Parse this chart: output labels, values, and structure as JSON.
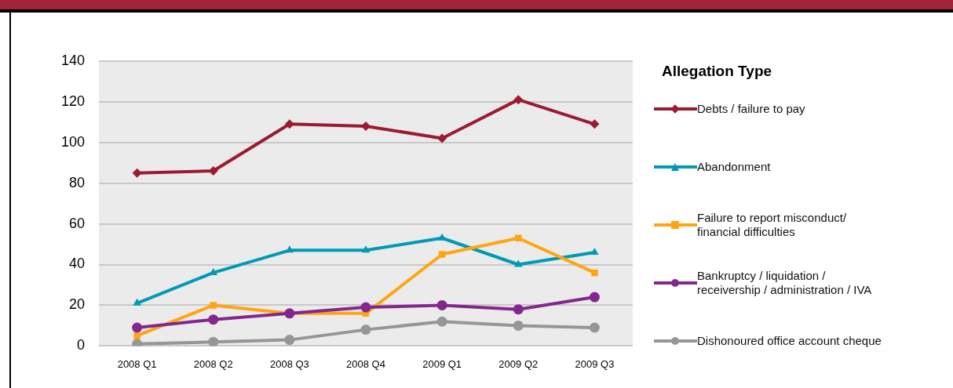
{
  "chart_data": {
    "type": "line",
    "legend_title": "Allegation Type",
    "categories": [
      "2008 Q1",
      "2008 Q2",
      "2008 Q3",
      "2008 Q4",
      "2009 Q1",
      "2009 Q2",
      "2009 Q3"
    ],
    "series": [
      {
        "name": "Debts / failure to pay",
        "color": "#9b1b30",
        "marker": "diamond",
        "values": [
          85,
          86,
          109,
          108,
          102,
          121,
          109
        ]
      },
      {
        "name": "Abandonment",
        "color": "#009ab5",
        "marker": "triangle",
        "values": [
          21,
          36,
          47,
          47,
          53,
          40,
          46
        ]
      },
      {
        "name": "Failure to report misconduct/\nfinancial difficulties",
        "color": "#ffa512",
        "marker": "square",
        "values": [
          5,
          20,
          16,
          16,
          45,
          53,
          36
        ]
      },
      {
        "name": "Bankruptcy / liquidation /\nreceivership / administration / IVA",
        "color": "#83278e",
        "marker": "circle",
        "values": [
          9,
          13,
          16,
          19,
          20,
          18,
          24
        ]
      },
      {
        "name": "Dishonoured office account cheque",
        "color": "#969696",
        "marker": "circle",
        "values": [
          1,
          2,
          3,
          8,
          12,
          10,
          9
        ]
      }
    ],
    "ylim": [
      0,
      140
    ],
    "yticks": [
      0,
      20,
      40,
      60,
      80,
      100,
      120,
      140
    ],
    "grid": "y",
    "legend": "right",
    "line_style": "solid"
  }
}
